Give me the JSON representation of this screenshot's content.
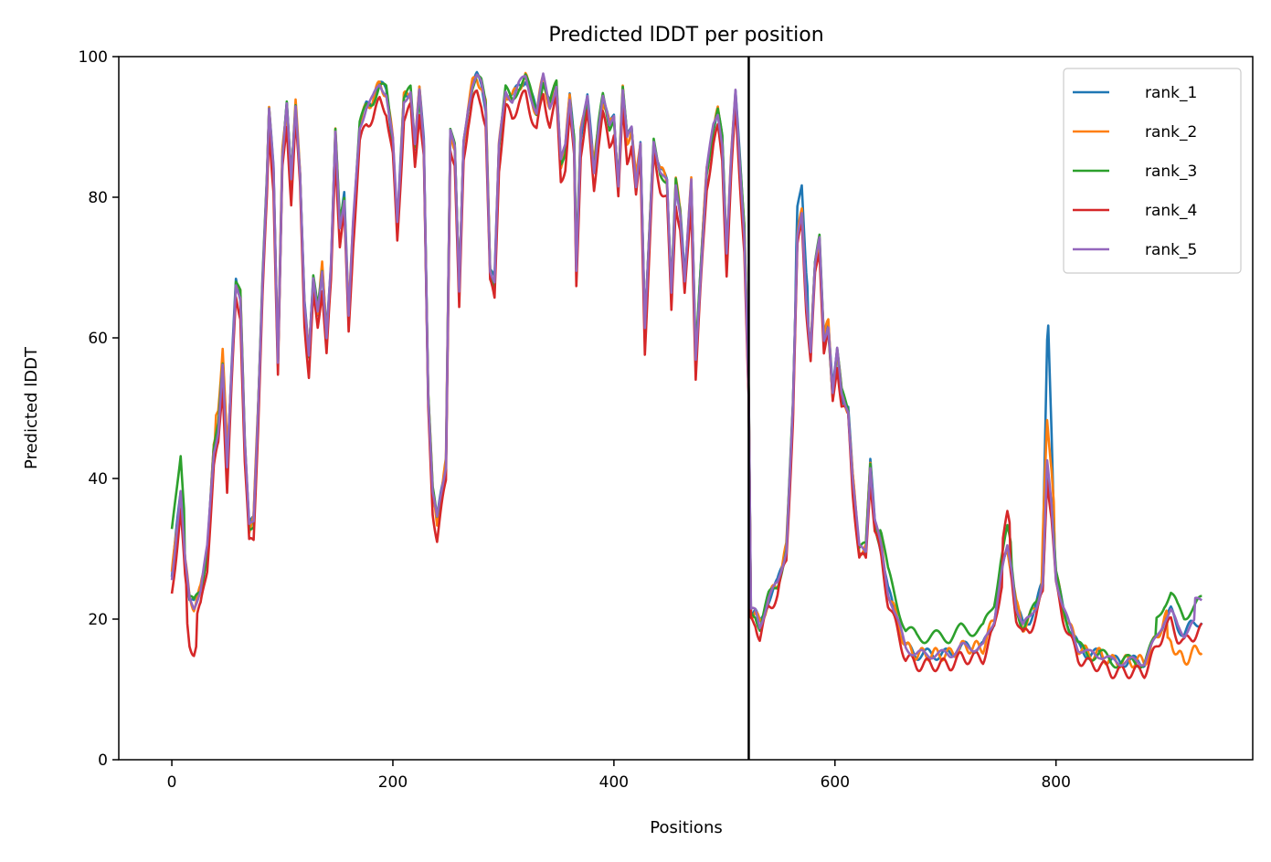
{
  "chart_data": {
    "type": "line",
    "title": "Predicted lDDT per position",
    "xlabel": "Positions",
    "ylabel": "Predicted lDDT",
    "xlim": [
      -48,
      978
    ],
    "ylim": [
      0,
      100
    ],
    "xticks": [
      0,
      200,
      400,
      600,
      800
    ],
    "xtick_labels": [
      "0",
      "200",
      "400",
      "600",
      "800"
    ],
    "yticks": [
      0,
      20,
      40,
      60,
      80,
      100
    ],
    "ytick_labels": [
      "0",
      "20",
      "40",
      "60",
      "80",
      "100"
    ],
    "grid": false,
    "legend_position": "top-right",
    "chain_break_x": 522,
    "chain_break_color": "#000000",
    "x_max": 932,
    "series": [
      {
        "name": "rank_1",
        "color": "#1f77b4"
      },
      {
        "name": "rank_2",
        "color": "#ff7f0e"
      },
      {
        "name": "rank_3",
        "color": "#2ca02c"
      },
      {
        "name": "rank_4",
        "color": "#d62728"
      },
      {
        "name": "rank_5",
        "color": "#9467bd"
      }
    ],
    "profile_points": [
      [
        0,
        26
      ],
      [
        4,
        32
      ],
      [
        8,
        38
      ],
      [
        12,
        28
      ],
      [
        16,
        23
      ],
      [
        20,
        22
      ],
      [
        26,
        24
      ],
      [
        32,
        30
      ],
      [
        38,
        44
      ],
      [
        42,
        47
      ],
      [
        46,
        56
      ],
      [
        50,
        41
      ],
      [
        54,
        55
      ],
      [
        58,
        68
      ],
      [
        62,
        66
      ],
      [
        66,
        45
      ],
      [
        70,
        33
      ],
      [
        74,
        34
      ],
      [
        78,
        50
      ],
      [
        82,
        68
      ],
      [
        86,
        82
      ],
      [
        88,
        92
      ],
      [
        92,
        84
      ],
      [
        96,
        57
      ],
      [
        100,
        86
      ],
      [
        104,
        93
      ],
      [
        108,
        82
      ],
      [
        112,
        93
      ],
      [
        116,
        84
      ],
      [
        120,
        65
      ],
      [
        124,
        57
      ],
      [
        128,
        68
      ],
      [
        132,
        64
      ],
      [
        136,
        70
      ],
      [
        140,
        60
      ],
      [
        144,
        70
      ],
      [
        148,
        89
      ],
      [
        152,
        76
      ],
      [
        156,
        80
      ],
      [
        160,
        63
      ],
      [
        164,
        76
      ],
      [
        170,
        90
      ],
      [
        176,
        93
      ],
      [
        182,
        94
      ],
      [
        188,
        96
      ],
      [
        194,
        95
      ],
      [
        200,
        88
      ],
      [
        204,
        76
      ],
      [
        210,
        94
      ],
      [
        216,
        95
      ],
      [
        220,
        87
      ],
      [
        224,
        95
      ],
      [
        228,
        88
      ],
      [
        232,
        52
      ],
      [
        236,
        38
      ],
      [
        240,
        34
      ],
      [
        244,
        38
      ],
      [
        248,
        42
      ],
      [
        252,
        90
      ],
      [
        256,
        87
      ],
      [
        260,
        66
      ],
      [
        264,
        88
      ],
      [
        268,
        93
      ],
      [
        272,
        96
      ],
      [
        276,
        97
      ],
      [
        280,
        96
      ],
      [
        284,
        93
      ],
      [
        288,
        70
      ],
      [
        292,
        68
      ],
      [
        296,
        87
      ],
      [
        302,
        95
      ],
      [
        308,
        94
      ],
      [
        314,
        96
      ],
      [
        320,
        97
      ],
      [
        324,
        95
      ],
      [
        330,
        92
      ],
      [
        336,
        97
      ],
      [
        342,
        93
      ],
      [
        348,
        96
      ],
      [
        352,
        85
      ],
      [
        356,
        87
      ],
      [
        360,
        94
      ],
      [
        364,
        88
      ],
      [
        366,
        70
      ],
      [
        370,
        89
      ],
      [
        376,
        94
      ],
      [
        382,
        84
      ],
      [
        386,
        90
      ],
      [
        390,
        94
      ],
      [
        396,
        90
      ],
      [
        400,
        92
      ],
      [
        404,
        82
      ],
      [
        408,
        95
      ],
      [
        412,
        88
      ],
      [
        416,
        90
      ],
      [
        420,
        82
      ],
      [
        424,
        88
      ],
      [
        428,
        61
      ],
      [
        432,
        74
      ],
      [
        436,
        88
      ],
      [
        442,
        84
      ],
      [
        448,
        82
      ],
      [
        452,
        66
      ],
      [
        456,
        82
      ],
      [
        460,
        78
      ],
      [
        464,
        68
      ],
      [
        470,
        82
      ],
      [
        474,
        57
      ],
      [
        478,
        68
      ],
      [
        484,
        84
      ],
      [
        490,
        90
      ],
      [
        494,
        92
      ],
      [
        498,
        88
      ],
      [
        502,
        72
      ],
      [
        506,
        85
      ],
      [
        510,
        95
      ],
      [
        514,
        85
      ],
      [
        518,
        75
      ],
      [
        522,
        52
      ],
      [
        524,
        21
      ],
      [
        528,
        21
      ],
      [
        532,
        19
      ],
      [
        540,
        23
      ],
      [
        548,
        25
      ],
      [
        556,
        30
      ],
      [
        562,
        50
      ],
      [
        566,
        74
      ],
      [
        570,
        78
      ],
      [
        574,
        66
      ],
      [
        578,
        58
      ],
      [
        582,
        70
      ],
      [
        586,
        74
      ],
      [
        590,
        60
      ],
      [
        594,
        62
      ],
      [
        598,
        52
      ],
      [
        602,
        58
      ],
      [
        606,
        52
      ],
      [
        612,
        50
      ],
      [
        616,
        40
      ],
      [
        622,
        30
      ],
      [
        628,
        30
      ],
      [
        632,
        42
      ],
      [
        636,
        34
      ],
      [
        642,
        30
      ],
      [
        648,
        24
      ],
      [
        656,
        20
      ],
      [
        664,
        16
      ],
      [
        674,
        15
      ],
      [
        684,
        15
      ],
      [
        694,
        15
      ],
      [
        704,
        15
      ],
      [
        714,
        16
      ],
      [
        724,
        16
      ],
      [
        734,
        16
      ],
      [
        744,
        20
      ],
      [
        750,
        26
      ],
      [
        756,
        30
      ],
      [
        760,
        27
      ],
      [
        764,
        22
      ],
      [
        770,
        19
      ],
      [
        776,
        20
      ],
      [
        782,
        22
      ],
      [
        788,
        25
      ],
      [
        792,
        42
      ],
      [
        796,
        36
      ],
      [
        800,
        26
      ],
      [
        806,
        22
      ],
      [
        812,
        19
      ],
      [
        820,
        16
      ],
      [
        830,
        15
      ],
      [
        840,
        15
      ],
      [
        850,
        14
      ],
      [
        860,
        14
      ],
      [
        870,
        14
      ],
      [
        880,
        14
      ],
      [
        890,
        17
      ],
      [
        898,
        20
      ],
      [
        904,
        21
      ],
      [
        910,
        19
      ],
      [
        916,
        18
      ],
      [
        922,
        19
      ],
      [
        932,
        20
      ]
    ]
  }
}
